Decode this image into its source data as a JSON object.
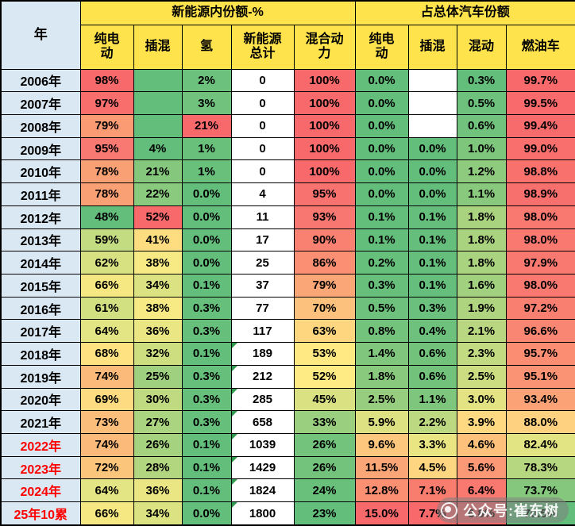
{
  "chart_data": {
    "type": "table",
    "corner_header": "年",
    "column_groups": [
      {
        "label": "新能源内份额-%",
        "span": 5
      },
      {
        "label": "占总体汽车份额",
        "span": 4
      }
    ],
    "columns": [
      "纯电动",
      "插混",
      "氢",
      "新能源总计",
      "混合动力",
      "纯电动",
      "插混",
      "混动",
      "燃油车"
    ],
    "columns_display": [
      "纯电\n动",
      "插混",
      "氢",
      "新能源\n总计",
      "混合动\n力",
      "纯电\n动",
      "插混",
      "混动",
      "燃油车"
    ],
    "rows": [
      {
        "year": "2006年",
        "year_red": false,
        "cells": [
          [
            "98%",
            "#F8696B"
          ],
          [
            "",
            "#63BE7B"
          ],
          [
            "2%",
            "#6CC17C"
          ],
          [
            "0",
            "#FFFFFF"
          ],
          [
            "100%",
            "#F8696B"
          ],
          [
            "0.0%",
            "#63BE7B"
          ],
          [
            "",
            "#FFFFFF"
          ],
          [
            "0.3%",
            "#63BE7B"
          ],
          [
            "99.7%",
            "#F8696B"
          ]
        ]
      },
      {
        "year": "2007年",
        "year_red": false,
        "cells": [
          [
            "97%",
            "#F86E6C"
          ],
          [
            "",
            "#63BE7B"
          ],
          [
            "3%",
            "#70C27C"
          ],
          [
            "0",
            "#FFFFFF"
          ],
          [
            "100%",
            "#F8696B"
          ],
          [
            "0.0%",
            "#63BE7B"
          ],
          [
            "",
            "#FFFFFF"
          ],
          [
            "0.5%",
            "#6DC17C"
          ],
          [
            "99.5%",
            "#F86A6B"
          ]
        ]
      },
      {
        "year": "2008年",
        "year_red": false,
        "cells": [
          [
            "79%",
            "#FA9B74"
          ],
          [
            "",
            "#63BE7B"
          ],
          [
            "21%",
            "#F8696B"
          ],
          [
            "0",
            "#FFFFFF"
          ],
          [
            "100%",
            "#F8696B"
          ],
          [
            "0.0%",
            "#63BE7B"
          ],
          [
            "",
            "#FFFFFF"
          ],
          [
            "0.6%",
            "#71C27C"
          ],
          [
            "99.4%",
            "#F86B6C"
          ]
        ]
      },
      {
        "year": "2009年",
        "year_red": false,
        "cells": [
          [
            "95%",
            "#F87872"
          ],
          [
            "4%",
            "#63BE7B"
          ],
          [
            "1%",
            "#68C07B"
          ],
          [
            "0",
            "#FFFFFF"
          ],
          [
            "100%",
            "#F8696B"
          ],
          [
            "0.0%",
            "#63BE7B"
          ],
          [
            "0.0%",
            "#63BE7B"
          ],
          [
            "1.0%",
            "#7FC67D"
          ],
          [
            "99.0%",
            "#F86F6D"
          ]
        ]
      },
      {
        "year": "2010年",
        "year_red": false,
        "cells": [
          [
            "78%",
            "#FAA075"
          ],
          [
            "21%",
            "#85C87D"
          ],
          [
            "1%",
            "#68C07B"
          ],
          [
            "0",
            "#FFFFFF"
          ],
          [
            "100%",
            "#F8696B"
          ],
          [
            "0.0%",
            "#63BE7B"
          ],
          [
            "0.0%",
            "#63BE7B"
          ],
          [
            "1.2%",
            "#8ECB7E"
          ],
          [
            "98.8%",
            "#F8716D"
          ]
        ]
      },
      {
        "year": "2011年",
        "year_red": false,
        "cells": [
          [
            "78%",
            "#FAA075"
          ],
          [
            "22%",
            "#8ACA7E"
          ],
          [
            "0.0%",
            "#63BE7B"
          ],
          [
            "4",
            "#FFFFFF"
          ],
          [
            "95%",
            "#F87370"
          ],
          [
            "0.0%",
            "#63BE7B"
          ],
          [
            "0.0%",
            "#63BE7B"
          ],
          [
            "1.1%",
            "#89C97D"
          ],
          [
            "98.9%",
            "#F8706D"
          ]
        ]
      },
      {
        "year": "2012年",
        "year_red": false,
        "cells": [
          [
            "48%",
            "#63BE7B"
          ],
          [
            "52%",
            "#F8696B"
          ],
          [
            "0.0%",
            "#63BE7B"
          ],
          [
            "11",
            "#FFFFFF"
          ],
          [
            "93%",
            "#F87871"
          ],
          [
            "0.1%",
            "#64BE7B"
          ],
          [
            "0.1%",
            "#65BE7B"
          ],
          [
            "1.8%",
            "#AAD380"
          ],
          [
            "98.0%",
            "#F97870"
          ]
        ]
      },
      {
        "year": "2013年",
        "year_red": false,
        "cells": [
          [
            "59%",
            "#C3DB81"
          ],
          [
            "41%",
            "#FEDC80"
          ],
          [
            "0.0%",
            "#63BE7B"
          ],
          [
            "17",
            "#FFFFFF"
          ],
          [
            "90%",
            "#F98172"
          ],
          [
            "0.1%",
            "#64BE7B"
          ],
          [
            "0.1%",
            "#65BE7B"
          ],
          [
            "1.8%",
            "#AAD380"
          ],
          [
            "98.0%",
            "#F97870"
          ]
        ]
      },
      {
        "year": "2014年",
        "year_red": false,
        "cells": [
          [
            "62%",
            "#D8E182"
          ],
          [
            "38%",
            "#F7EA84"
          ],
          [
            "0.0%",
            "#63BE7B"
          ],
          [
            "25",
            "#FFFFFF"
          ],
          [
            "86%",
            "#FA8F74"
          ],
          [
            "0.2%",
            "#66BF7B"
          ],
          [
            "0.1%",
            "#65BE7B"
          ],
          [
            "1.8%",
            "#AAD380"
          ],
          [
            "97.9%",
            "#F97970"
          ]
        ]
      },
      {
        "year": "2015年",
        "year_red": false,
        "cells": [
          [
            "66%",
            "#F5E883"
          ],
          [
            "34%",
            "#DBE282"
          ],
          [
            "0.1%",
            "#64BE7B"
          ],
          [
            "37",
            "#FFFFFF"
          ],
          [
            "79%",
            "#FBA677"
          ],
          [
            "0.3%",
            "#67BF7B"
          ],
          [
            "0.1%",
            "#65BE7B"
          ],
          [
            "1.6%",
            "#A1D07F"
          ],
          [
            "98.0%",
            "#F97870"
          ]
        ]
      },
      {
        "year": "2016年",
        "year_red": false,
        "cells": [
          [
            "61%",
            "#D2E082"
          ],
          [
            "38%",
            "#F7EA84"
          ],
          [
            "0.3%",
            "#66BF7B"
          ],
          [
            "77",
            "#FFFFFF"
          ],
          [
            "70%",
            "#FCC17C"
          ],
          [
            "0.5%",
            "#6DC17C"
          ],
          [
            "0.3%",
            "#6AC07C"
          ],
          [
            "1.9%",
            "#AFD480"
          ],
          [
            "97.2%",
            "#F98071"
          ]
        ]
      },
      {
        "year": "2017年",
        "year_red": false,
        "cells": [
          [
            "64%",
            "#E3E483"
          ],
          [
            "36%",
            "#E9E683"
          ],
          [
            "0.3%",
            "#66BF7B"
          ],
          [
            "117",
            "#FFFFFF"
          ],
          [
            "63%",
            "#FDD67F"
          ],
          [
            "0.8%",
            "#74C37C"
          ],
          [
            "0.4%",
            "#6DC17C"
          ],
          [
            "2.1%",
            "#B9D780"
          ],
          [
            "96.6%",
            "#F98573"
          ]
        ]
      },
      {
        "year": "2018年",
        "year_red": false,
        "cells": [
          [
            "68%",
            "#FEE282"
          ],
          [
            "32%",
            "#CDDE81"
          ],
          [
            "0.1%",
            "#64BE7B"
          ],
          [
            "189",
            "#FFFFFF",
            true
          ],
          [
            "53%",
            "#FEE983"
          ],
          [
            "1.4%",
            "#80C67C"
          ],
          [
            "0.6%",
            "#72C27C"
          ],
          [
            "2.3%",
            "#C2DA81"
          ],
          [
            "95.7%",
            "#FA8D72"
          ]
        ]
      },
      {
        "year": "2019年",
        "year_red": false,
        "cells": [
          [
            "74%",
            "#FCBA7A"
          ],
          [
            "25%",
            "#9ED07F"
          ],
          [
            "0.3%",
            "#66BF7B"
          ],
          [
            "212",
            "#FFFFFF",
            true
          ],
          [
            "52%",
            "#FFEB84"
          ],
          [
            "1.8%",
            "#88C97D"
          ],
          [
            "0.6%",
            "#72C27C"
          ],
          [
            "2.5%",
            "#CCDD81"
          ],
          [
            "95.1%",
            "#FA9374"
          ]
        ]
      },
      {
        "year": "2020年",
        "year_red": false,
        "cells": [
          [
            "69%",
            "#FDDC81"
          ],
          [
            "30%",
            "#C0DA81"
          ],
          [
            "0.3%",
            "#66BF7B"
          ],
          [
            "285",
            "#FFFFFF",
            true
          ],
          [
            "45%",
            "#D9E182"
          ],
          [
            "2.5%",
            "#97CD7E"
          ],
          [
            "1.1%",
            "#7EC67D"
          ],
          [
            "3.0%",
            "#E4E383"
          ],
          [
            "93.4%",
            "#FBA276"
          ]
        ]
      },
      {
        "year": "2021年",
        "year_red": false,
        "cells": [
          [
            "73%",
            "#FCBF7B"
          ],
          [
            "27%",
            "#ABD480"
          ],
          [
            "0.3%",
            "#66BF7B"
          ],
          [
            "658",
            "#FFFFFF",
            true
          ],
          [
            "33%",
            "#99CF7F"
          ],
          [
            "5.9%",
            "#DEE182"
          ],
          [
            "2.2%",
            "#BCD880"
          ],
          [
            "3.9%",
            "#FED982"
          ],
          [
            "88.0%",
            "#FDD180"
          ]
        ]
      },
      {
        "year": "2022年",
        "year_red": true,
        "cells": [
          [
            "74%",
            "#FCBA7A"
          ],
          [
            "26%",
            "#A4D27F"
          ],
          [
            "0.1%",
            "#64BE7B"
          ],
          [
            "1039",
            "#FFFFFF",
            true
          ],
          [
            "26%",
            "#73C37C"
          ],
          [
            "9.6%",
            "#FDC77D"
          ],
          [
            "3.3%",
            "#E9E583"
          ],
          [
            "4.6%",
            "#FDC17C"
          ],
          [
            "82.4%",
            "#E2E382"
          ]
        ]
      },
      {
        "year": "2023年",
        "year_red": true,
        "cells": [
          [
            "72%",
            "#FCC57C"
          ],
          [
            "28%",
            "#B2D680"
          ],
          [
            "0.1%",
            "#64BE7B"
          ],
          [
            "1429",
            "#FFFFFF",
            true
          ],
          [
            "26%",
            "#73C37C"
          ],
          [
            "11.5%",
            "#FBA677"
          ],
          [
            "4.5%",
            "#FED580"
          ],
          [
            "5.6%",
            "#FB9876"
          ],
          [
            "78.3%",
            "#B6D680"
          ]
        ]
      },
      {
        "year": "2024年",
        "year_red": true,
        "cells": [
          [
            "64%",
            "#E3E483"
          ],
          [
            "36%",
            "#E9E683"
          ],
          [
            "0.1%",
            "#64BE7B"
          ],
          [
            "1824",
            "#FFFFFF",
            true
          ],
          [
            "24%",
            "#69C07B"
          ],
          [
            "12.8%",
            "#FA8F72"
          ],
          [
            "7.1%",
            "#F97D6F"
          ],
          [
            "6.4%",
            "#F97870"
          ],
          [
            "73.7%",
            "#85C87D"
          ]
        ]
      },
      {
        "year": "25年10累",
        "year_red": true,
        "cells": [
          [
            "66%",
            "#F5E883"
          ],
          [
            "34%",
            "#DBE282"
          ],
          [
            "0.0%",
            "#63BE7B"
          ],
          [
            "1800",
            "#FFFFFF",
            true
          ],
          [
            "23%",
            "#63BE7B"
          ],
          [
            "15.0%",
            "#F8696B"
          ],
          [
            "7.7%",
            "#F8696B"
          ],
          [
            "6.8%",
            "#F8696B"
          ],
          [
            "70.5%",
            "#63BE7B"
          ]
        ]
      }
    ]
  },
  "colors": {
    "header_bg": "#FFE34D",
    "year_bg": "#D9E8F3",
    "year_red_text": "#FF0000",
    "scale_green": "#63BE7B",
    "scale_yellow": "#FFEB84",
    "scale_red": "#F8696B",
    "triangle_green": "#2E9B4F",
    "border": "#000000"
  },
  "watermark": {
    "text": "公众号:崔东树"
  }
}
